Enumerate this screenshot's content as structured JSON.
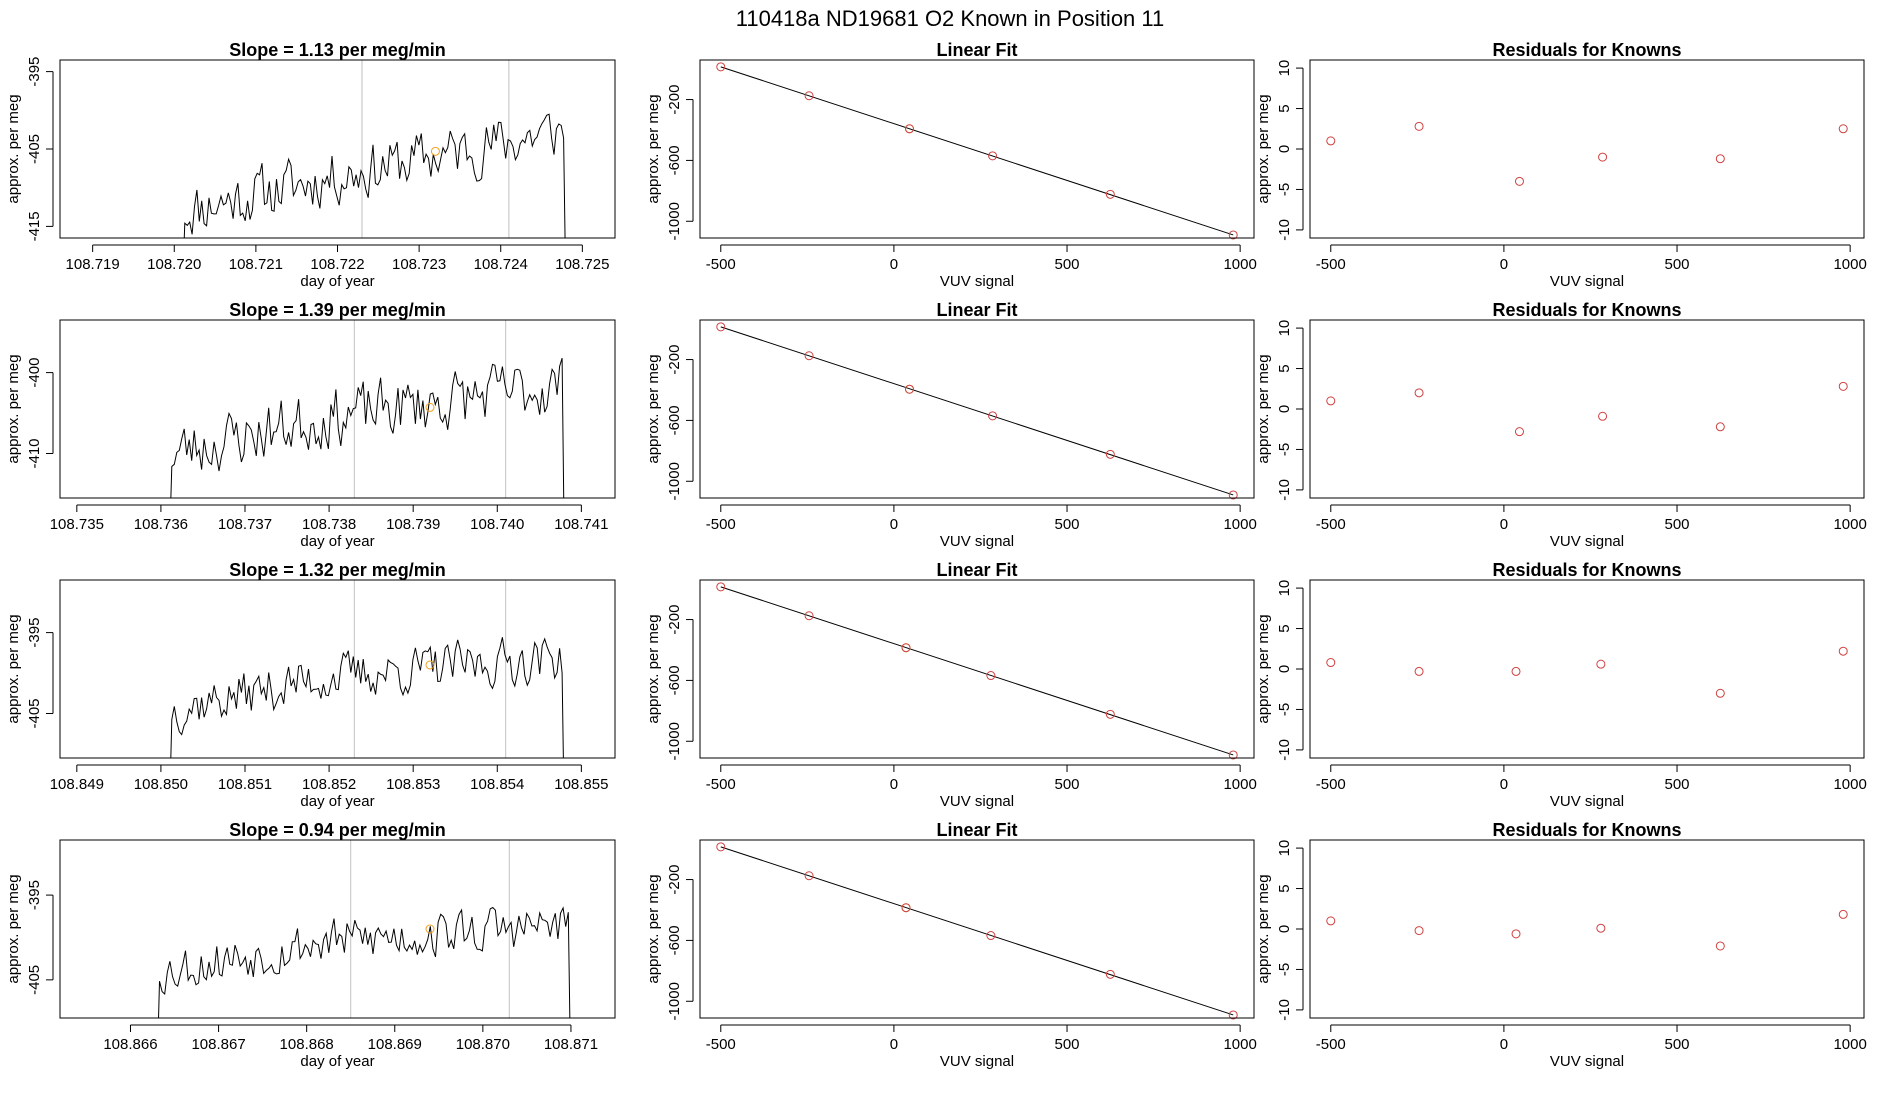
{
  "figure": {
    "main_title": "110418a     ND19681    O2 Known in Position  11",
    "colors": {
      "trace": "#000000",
      "marker": "#f0a020",
      "fit_point": "#d04040",
      "vline": "#c0c0c0",
      "axis": "#000000"
    }
  },
  "chart_data": [
    {
      "type": "line",
      "row": 0,
      "col": 0,
      "title": "Slope =  1.13  per meg/min",
      "xlabel": "day of year",
      "ylabel": "approx. per meg",
      "xlim": [
        108.7186,
        108.7254
      ],
      "ylim": [
        -416.5,
        -393.5
      ],
      "xticks": [
        108.719,
        108.72,
        108.721,
        108.722,
        108.723,
        108.724,
        108.725
      ],
      "xtick_labels": [
        "108.719",
        "108.720",
        "108.721",
        "108.722",
        "108.723",
        "108.724",
        "108.725"
      ],
      "yticks": [
        -395,
        -405,
        -415
      ],
      "ytick_labels": [
        "-395",
        "-405",
        "-415"
      ],
      "vlines": [
        108.7223,
        108.7241
      ],
      "marker": {
        "x": 108.7232,
        "y": -405.3
      },
      "trace": {
        "x_start": 108.7201,
        "x_end": 108.7248,
        "n": 160,
        "start_y": -423,
        "end_y": -425,
        "levels": [
          [
            0,
            -413
          ],
          [
            0.4,
            -408.5
          ],
          [
            1,
            -402.5
          ]
        ],
        "amp": 3.2,
        "seed": 11
      }
    },
    {
      "type": "scatter",
      "row": 0,
      "col": 1,
      "title": "Linear Fit",
      "xlabel": "VUV signal",
      "ylabel": "approx. per meg",
      "xlim": [
        -560,
        1040
      ],
      "ylim": [
        -1110,
        60
      ],
      "xticks": [
        -500,
        0,
        500,
        1000
      ],
      "xtick_labels": [
        "-500",
        "0",
        "500",
        "1000"
      ],
      "yticks": [
        -200,
        -600,
        -1000
      ],
      "ytick_labels": [
        "-200",
        "-600",
        "-1000"
      ],
      "line": [
        [
          -500,
          15
        ],
        [
          980,
          -1090
        ]
      ],
      "points": [
        {
          "x": -500,
          "y": 15,
          "color": "fit_point"
        },
        {
          "x": -245,
          "y": -175,
          "color": "fit_point"
        },
        {
          "x": 45,
          "y": -392,
          "color": "marker"
        },
        {
          "x": 45,
          "y": -392,
          "color": "fit_point"
        },
        {
          "x": 285,
          "y": -570,
          "color": "fit_point"
        },
        {
          "x": 625,
          "y": -823,
          "color": "fit_point"
        },
        {
          "x": 980,
          "y": -1090,
          "color": "fit_point"
        }
      ]
    },
    {
      "type": "scatter",
      "row": 0,
      "col": 2,
      "title": "Residuals for Knowns",
      "xlabel": "VUV signal",
      "ylabel": "approx. per meg",
      "xlim": [
        -560,
        1040
      ],
      "ylim": [
        -11,
        11
      ],
      "xticks": [
        -500,
        0,
        500,
        1000
      ],
      "xtick_labels": [
        "-500",
        "0",
        "500",
        "1000"
      ],
      "yticks": [
        10,
        5,
        0,
        -5,
        -10
      ],
      "ytick_labels": [
        "10",
        "5",
        "0",
        "-5",
        "-10"
      ],
      "points": [
        {
          "x": -500,
          "y": 1.0,
          "color": "fit_point"
        },
        {
          "x": -245,
          "y": 2.8,
          "color": "fit_point"
        },
        {
          "x": 45,
          "y": -4.0,
          "color": "fit_point"
        },
        {
          "x": 285,
          "y": -1.0,
          "color": "fit_point"
        },
        {
          "x": 625,
          "y": -1.2,
          "color": "fit_point"
        },
        {
          "x": 980,
          "y": 2.5,
          "color": "fit_point"
        }
      ]
    },
    {
      "type": "line",
      "row": 1,
      "col": 0,
      "title": "Slope =  1.39  per meg/min",
      "xlabel": "day of year",
      "ylabel": "approx. per meg",
      "xlim": [
        108.7348,
        108.7414
      ],
      "ylim": [
        -415.5,
        -393.5
      ],
      "xticks": [
        108.735,
        108.736,
        108.737,
        108.738,
        108.739,
        108.74,
        108.741
      ],
      "xtick_labels": [
        "108.735",
        "108.736",
        "108.737",
        "108.738",
        "108.739",
        "108.740",
        "108.741"
      ],
      "yticks": [
        -400,
        -410
      ],
      "ytick_labels": [
        "-400",
        "-410"
      ],
      "vlines": [
        108.7383,
        108.7401
      ],
      "marker": {
        "x": 108.7392,
        "y": -404.3
      },
      "trace": {
        "x_start": 108.7361,
        "x_end": 108.7408,
        "n": 160,
        "start_y": -422,
        "end_y": -424,
        "levels": [
          [
            0,
            -410
          ],
          [
            0.4,
            -405.5
          ],
          [
            1,
            -401.5
          ]
        ],
        "amp": 3.3,
        "seed": 23
      }
    },
    {
      "type": "scatter",
      "row": 1,
      "col": 1,
      "title": "Linear Fit",
      "xlabel": "VUV signal",
      "ylabel": "approx. per meg",
      "xlim": [
        -560,
        1040
      ],
      "ylim": [
        -1110,
        60
      ],
      "xticks": [
        -500,
        0,
        500,
        1000
      ],
      "xtick_labels": [
        "-500",
        "0",
        "500",
        "1000"
      ],
      "yticks": [
        -200,
        -600,
        -1000
      ],
      "ytick_labels": [
        "-200",
        "-600",
        "-1000"
      ],
      "line": [
        [
          -500,
          15
        ],
        [
          980,
          -1090
        ]
      ],
      "points": [
        {
          "x": -500,
          "y": 15,
          "color": "fit_point"
        },
        {
          "x": -245,
          "y": -175,
          "color": "fit_point"
        },
        {
          "x": 45,
          "y": -395,
          "color": "marker"
        },
        {
          "x": 45,
          "y": -395,
          "color": "fit_point"
        },
        {
          "x": 285,
          "y": -570,
          "color": "fit_point"
        },
        {
          "x": 625,
          "y": -823,
          "color": "fit_point"
        },
        {
          "x": 980,
          "y": -1090,
          "color": "fit_point"
        }
      ]
    },
    {
      "type": "scatter",
      "row": 1,
      "col": 2,
      "title": "Residuals for Knowns",
      "xlabel": "VUV signal",
      "ylabel": "approx. per meg",
      "xlim": [
        -560,
        1040
      ],
      "ylim": [
        -11,
        11
      ],
      "xticks": [
        -500,
        0,
        500,
        1000
      ],
      "xtick_labels": [
        "-500",
        "0",
        "500",
        "1000"
      ],
      "yticks": [
        10,
        5,
        0,
        -5,
        -10
      ],
      "ytick_labels": [
        "10",
        "5",
        "0",
        "-5",
        "-10"
      ],
      "points": [
        {
          "x": -500,
          "y": 1.0,
          "color": "fit_point"
        },
        {
          "x": -245,
          "y": 2.0,
          "color": "fit_point"
        },
        {
          "x": 45,
          "y": -2.8,
          "color": "fit_point"
        },
        {
          "x": 285,
          "y": -0.9,
          "color": "fit_point"
        },
        {
          "x": 625,
          "y": -2.2,
          "color": "fit_point"
        },
        {
          "x": 980,
          "y": 2.8,
          "color": "fit_point"
        }
      ]
    },
    {
      "type": "line",
      "row": 2,
      "col": 0,
      "title": "Slope =  1.32  per meg/min",
      "xlabel": "day of year",
      "ylabel": "approx. per meg",
      "xlim": [
        108.8488,
        108.8554
      ],
      "ylim": [
        -410.5,
        -388.5
      ],
      "xticks": [
        108.849,
        108.85,
        108.851,
        108.852,
        108.853,
        108.854,
        108.855
      ],
      "xtick_labels": [
        "108.849",
        "108.850",
        "108.851",
        "108.852",
        "108.853",
        "108.854",
        "108.855"
      ],
      "yticks": [
        -395,
        -405
      ],
      "ytick_labels": [
        "-395",
        "-405"
      ],
      "vlines": [
        108.8523,
        108.8541
      ],
      "marker": {
        "x": 108.8532,
        "y": -399.0
      },
      "trace": {
        "x_start": 108.8501,
        "x_end": 108.8548,
        "n": 160,
        "start_y": -418,
        "end_y": -420,
        "levels": [
          [
            0,
            -404.5
          ],
          [
            0.4,
            -400.5
          ],
          [
            1,
            -398
          ]
        ],
        "amp": 2.6,
        "seed": 37
      }
    },
    {
      "type": "scatter",
      "row": 2,
      "col": 1,
      "title": "Linear Fit",
      "xlabel": "VUV signal",
      "ylabel": "approx. per meg",
      "xlim": [
        -560,
        1040
      ],
      "ylim": [
        -1110,
        60
      ],
      "xticks": [
        -500,
        0,
        500,
        1000
      ],
      "xtick_labels": [
        "-500",
        "0",
        "500",
        "1000"
      ],
      "yticks": [
        -200,
        -600,
        -1000
      ],
      "ytick_labels": [
        "-200",
        "-600",
        "-1000"
      ],
      "line": [
        [
          -500,
          15
        ],
        [
          980,
          -1090
        ]
      ],
      "points": [
        {
          "x": -500,
          "y": 15,
          "color": "fit_point"
        },
        {
          "x": -245,
          "y": -175,
          "color": "fit_point"
        },
        {
          "x": 35,
          "y": -385,
          "color": "marker"
        },
        {
          "x": 35,
          "y": -385,
          "color": "fit_point"
        },
        {
          "x": 280,
          "y": -568,
          "color": "fit_point"
        },
        {
          "x": 625,
          "y": -823,
          "color": "fit_point"
        },
        {
          "x": 980,
          "y": -1090,
          "color": "fit_point"
        }
      ]
    },
    {
      "type": "scatter",
      "row": 2,
      "col": 2,
      "title": "Residuals for Knowns",
      "xlabel": "VUV signal",
      "ylabel": "approx. per meg",
      "xlim": [
        -560,
        1040
      ],
      "ylim": [
        -11,
        11
      ],
      "xticks": [
        -500,
        0,
        500,
        1000
      ],
      "xtick_labels": [
        "-500",
        "0",
        "500",
        "1000"
      ],
      "yticks": [
        10,
        5,
        0,
        -5,
        -10
      ],
      "ytick_labels": [
        "10",
        "5",
        "0",
        "-5",
        "-10"
      ],
      "points": [
        {
          "x": -500,
          "y": 0.8,
          "color": "fit_point"
        },
        {
          "x": -245,
          "y": -0.3,
          "color": "fit_point"
        },
        {
          "x": 35,
          "y": -0.3,
          "color": "fit_point"
        },
        {
          "x": 280,
          "y": 0.6,
          "color": "fit_point"
        },
        {
          "x": 625,
          "y": -3.0,
          "color": "fit_point"
        },
        {
          "x": 980,
          "y": 2.2,
          "color": "fit_point"
        }
      ]
    },
    {
      "type": "line",
      "row": 3,
      "col": 0,
      "title": "Slope =  0.94  per meg/min",
      "xlabel": "day of year",
      "ylabel": "approx. per meg",
      "xlim": [
        108.8652,
        108.8715
      ],
      "ylim": [
        -409.5,
        -388.5
      ],
      "xticks": [
        108.866,
        108.867,
        108.868,
        108.869,
        108.87,
        108.871
      ],
      "xtick_labels": [
        "108.866",
        "108.867",
        "108.868",
        "108.869",
        "108.870",
        "108.871"
      ],
      "yticks": [
        -395,
        -405
      ],
      "ytick_labels": [
        "-395",
        "-405"
      ],
      "vlines": [
        108.8685,
        108.8703
      ],
      "marker": {
        "x": 108.8694,
        "y": -399.0
      },
      "trace": {
        "x_start": 108.8663,
        "x_end": 108.871,
        "n": 160,
        "start_y": -417,
        "end_y": -419,
        "levels": [
          [
            0,
            -404
          ],
          [
            0.4,
            -400.5
          ],
          [
            1,
            -398.5
          ]
        ],
        "amp": 2.5,
        "seed": 53
      }
    },
    {
      "type": "scatter",
      "row": 3,
      "col": 1,
      "title": "Linear Fit",
      "xlabel": "VUV signal",
      "ylabel": "approx. per meg",
      "xlim": [
        -560,
        1040
      ],
      "ylim": [
        -1110,
        60
      ],
      "xticks": [
        -500,
        0,
        500,
        1000
      ],
      "xtick_labels": [
        "-500",
        "0",
        "500",
        "1000"
      ],
      "yticks": [
        -200,
        -600,
        -1000
      ],
      "ytick_labels": [
        "-200",
        "-600",
        "-1000"
      ],
      "line": [
        [
          -500,
          15
        ],
        [
          980,
          -1090
        ]
      ],
      "points": [
        {
          "x": -500,
          "y": 15,
          "color": "fit_point"
        },
        {
          "x": -245,
          "y": -175,
          "color": "fit_point"
        },
        {
          "x": 35,
          "y": -385,
          "color": "marker"
        },
        {
          "x": 35,
          "y": -385,
          "color": "fit_point"
        },
        {
          "x": 280,
          "y": -568,
          "color": "fit_point"
        },
        {
          "x": 625,
          "y": -823,
          "color": "fit_point"
        },
        {
          "x": 980,
          "y": -1090,
          "color": "fit_point"
        }
      ]
    },
    {
      "type": "scatter",
      "row": 3,
      "col": 2,
      "title": "Residuals for Knowns",
      "xlabel": "VUV signal",
      "ylabel": "approx. per meg",
      "xlim": [
        -560,
        1040
      ],
      "ylim": [
        -11,
        11
      ],
      "xticks": [
        -500,
        0,
        500,
        1000
      ],
      "xtick_labels": [
        "-500",
        "0",
        "500",
        "1000"
      ],
      "yticks": [
        10,
        5,
        0,
        -5,
        -10
      ],
      "ytick_labels": [
        "10",
        "5",
        "0",
        "-5",
        "-10"
      ],
      "points": [
        {
          "x": -500,
          "y": 1.0,
          "color": "fit_point"
        },
        {
          "x": -245,
          "y": -0.2,
          "color": "fit_point"
        },
        {
          "x": 35,
          "y": -0.6,
          "color": "fit_point"
        },
        {
          "x": 280,
          "y": 0.1,
          "color": "fit_point"
        },
        {
          "x": 625,
          "y": -2.1,
          "color": "fit_point"
        },
        {
          "x": 980,
          "y": 1.8,
          "color": "fit_point"
        }
      ]
    }
  ]
}
